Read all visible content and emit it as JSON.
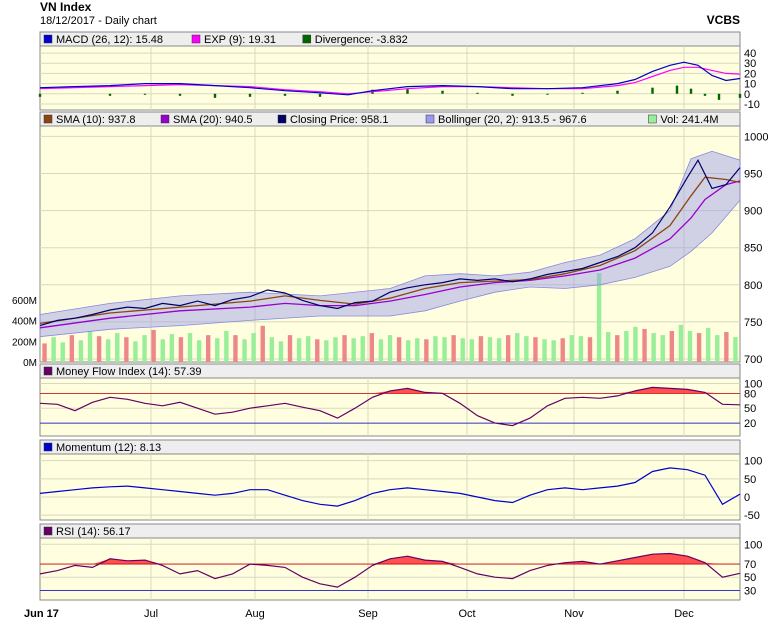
{
  "header": {
    "title": "VN Index",
    "subtitle": "18/12/2017 - Daily chart",
    "source": "VCBS"
  },
  "colors": {
    "panel_bg": "#ffffe0",
    "legend_bg": "#eeeeee",
    "macd": "#0000cc",
    "exp": "#ff00ff",
    "divergence": "#006600",
    "sma10": "#8b4513",
    "sma20": "#9900cc",
    "close": "#000066",
    "bollinger_fill": "#9999ee",
    "vol_up": "#99ee99",
    "vol_down": "#ee8888",
    "mfi": "#660066",
    "momentum": "#0000cc",
    "rsi": "#660066",
    "over_fill": "#ff3333",
    "ref_high": "#cc0000",
    "ref_low": "#0000cc"
  },
  "x_axis": {
    "labels": [
      "Jun 17",
      "Jul",
      "Aug",
      "Sep",
      "Oct",
      "Nov",
      "Dec"
    ]
  },
  "chart_data": [
    {
      "panel": "macd",
      "type": "line",
      "legend": [
        "MACD (26, 12): 15.48",
        "EXP (9): 19.31",
        "Divergence: -3.832"
      ],
      "y_ticks": [
        "40",
        "30",
        "20",
        "10",
        "0",
        "-10"
      ],
      "ylim": [
        -13,
        44
      ],
      "points": [
        [
          0,
          6
        ],
        [
          10,
          7
        ],
        [
          20,
          8
        ],
        [
          30,
          10
        ],
        [
          40,
          10
        ],
        [
          50,
          8
        ],
        [
          60,
          6
        ],
        [
          70,
          3
        ],
        [
          80,
          1
        ],
        [
          88,
          -1
        ],
        [
          95,
          3
        ],
        [
          105,
          7
        ],
        [
          115,
          8
        ],
        [
          125,
          7
        ],
        [
          135,
          5
        ],
        [
          145,
          5
        ],
        [
          155,
          6
        ],
        [
          165,
          10
        ],
        [
          170,
          14
        ],
        [
          175,
          22
        ],
        [
          180,
          28
        ],
        [
          184,
          31
        ],
        [
          188,
          28
        ],
        [
          192,
          18
        ],
        [
          196,
          13
        ],
        [
          200,
          15
        ]
      ],
      "exp_points": [
        [
          0,
          5
        ],
        [
          10,
          6
        ],
        [
          20,
          7
        ],
        [
          30,
          8
        ],
        [
          40,
          9
        ],
        [
          50,
          8
        ],
        [
          60,
          7
        ],
        [
          70,
          4
        ],
        [
          80,
          2
        ],
        [
          88,
          0
        ],
        [
          95,
          2
        ],
        [
          105,
          5
        ],
        [
          115,
          7
        ],
        [
          125,
          7
        ],
        [
          135,
          6
        ],
        [
          145,
          5
        ],
        [
          155,
          5
        ],
        [
          165,
          8
        ],
        [
          170,
          11
        ],
        [
          175,
          17
        ],
        [
          180,
          23
        ],
        [
          184,
          26
        ],
        [
          188,
          26
        ],
        [
          192,
          23
        ],
        [
          196,
          20
        ],
        [
          200,
          19.3
        ]
      ],
      "divergence": [
        [
          0,
          -3
        ],
        [
          20,
          -2
        ],
        [
          30,
          -1
        ],
        [
          40,
          -2
        ],
        [
          50,
          -4
        ],
        [
          60,
          -3
        ],
        [
          70,
          -2
        ],
        [
          80,
          -3
        ],
        [
          88,
          -1
        ],
        [
          95,
          4
        ],
        [
          105,
          5
        ],
        [
          115,
          3
        ],
        [
          125,
          1
        ],
        [
          135,
          -2
        ],
        [
          145,
          -1
        ],
        [
          155,
          1
        ],
        [
          165,
          3
        ],
        [
          175,
          6
        ],
        [
          182,
          8
        ],
        [
          186,
          5
        ],
        [
          190,
          -2
        ],
        [
          194,
          -6
        ],
        [
          200,
          -4
        ]
      ]
    },
    {
      "panel": "price",
      "type": "line",
      "legend": [
        "SMA (10): 937.8",
        "SMA (20): 940.5",
        "Closing Price: 958.1",
        "Bollinger (20, 2): 913.5 - 967.6",
        "Vol: 241.4M"
      ],
      "y_ticks": [
        "1000",
        "950",
        "900",
        "850",
        "800",
        "750",
        "700"
      ],
      "vol_ticks": [
        "600M",
        "400M",
        "200M",
        "0M"
      ],
      "ylim": [
        700,
        1010
      ],
      "close": [
        [
          0,
          745
        ],
        [
          5,
          752
        ],
        [
          10,
          755
        ],
        [
          15,
          760
        ],
        [
          20,
          766
        ],
        [
          25,
          770
        ],
        [
          30,
          768
        ],
        [
          35,
          775
        ],
        [
          40,
          772
        ],
        [
          45,
          778
        ],
        [
          50,
          772
        ],
        [
          55,
          780
        ],
        [
          60,
          784
        ],
        [
          65,
          793
        ],
        [
          70,
          789
        ],
        [
          75,
          779
        ],
        [
          80,
          772
        ],
        [
          85,
          768
        ],
        [
          90,
          776
        ],
        [
          95,
          778
        ],
        [
          100,
          790
        ],
        [
          105,
          796
        ],
        [
          110,
          800
        ],
        [
          115,
          803
        ],
        [
          120,
          808
        ],
        [
          125,
          806
        ],
        [
          130,
          808
        ],
        [
          135,
          804
        ],
        [
          140,
          808
        ],
        [
          145,
          814
        ],
        [
          150,
          818
        ],
        [
          155,
          822
        ],
        [
          160,
          830
        ],
        [
          165,
          838
        ],
        [
          170,
          850
        ],
        [
          175,
          870
        ],
        [
          180,
          905
        ],
        [
          185,
          945
        ],
        [
          188,
          968
        ],
        [
          192,
          930
        ],
        [
          196,
          935
        ],
        [
          200,
          958
        ]
      ],
      "sma10": [
        [
          0,
          748
        ],
        [
          20,
          762
        ],
        [
          40,
          770
        ],
        [
          60,
          778
        ],
        [
          70,
          785
        ],
        [
          80,
          779
        ],
        [
          90,
          774
        ],
        [
          100,
          782
        ],
        [
          110,
          795
        ],
        [
          120,
          803
        ],
        [
          130,
          805
        ],
        [
          140,
          807
        ],
        [
          150,
          815
        ],
        [
          160,
          826
        ],
        [
          170,
          846
        ],
        [
          180,
          880
        ],
        [
          186,
          920
        ],
        [
          190,
          945
        ],
        [
          196,
          942
        ],
        [
          200,
          938
        ]
      ],
      "sma20": [
        [
          0,
          742
        ],
        [
          20,
          755
        ],
        [
          40,
          765
        ],
        [
          60,
          770
        ],
        [
          70,
          775
        ],
        [
          80,
          772
        ],
        [
          90,
          772
        ],
        [
          100,
          778
        ],
        [
          110,
          787
        ],
        [
          120,
          797
        ],
        [
          130,
          803
        ],
        [
          140,
          806
        ],
        [
          150,
          812
        ],
        [
          160,
          820
        ],
        [
          170,
          836
        ],
        [
          180,
          862
        ],
        [
          186,
          890
        ],
        [
          190,
          915
        ],
        [
          196,
          935
        ],
        [
          200,
          940
        ]
      ],
      "bb_upper": [
        [
          0,
          760
        ],
        [
          20,
          775
        ],
        [
          40,
          785
        ],
        [
          60,
          790
        ],
        [
          80,
          785
        ],
        [
          100,
          795
        ],
        [
          110,
          812
        ],
        [
          120,
          815
        ],
        [
          130,
          812
        ],
        [
          140,
          817
        ],
        [
          150,
          830
        ],
        [
          160,
          840
        ],
        [
          170,
          862
        ],
        [
          180,
          900
        ],
        [
          186,
          970
        ],
        [
          192,
          980
        ],
        [
          200,
          968
        ]
      ],
      "bb_lower": [
        [
          0,
          730
        ],
        [
          20,
          740
        ],
        [
          40,
          745
        ],
        [
          60,
          752
        ],
        [
          80,
          758
        ],
        [
          100,
          758
        ],
        [
          110,
          765
        ],
        [
          120,
          778
        ],
        [
          130,
          790
        ],
        [
          140,
          797
        ],
        [
          150,
          795
        ],
        [
          160,
          800
        ],
        [
          170,
          810
        ],
        [
          180,
          825
        ],
        [
          186,
          845
        ],
        [
          192,
          870
        ],
        [
          200,
          914
        ]
      ],
      "volume_m": [
        180,
        240,
        190,
        260,
        210,
        300,
        250,
        220,
        280,
        240,
        200,
        260,
        310,
        220,
        270,
        240,
        280,
        210,
        260,
        230,
        300,
        260,
        220,
        280,
        350,
        240,
        200,
        260,
        230,
        250,
        220,
        210,
        240,
        260,
        230,
        250,
        280,
        220,
        260,
        240,
        210,
        230,
        220,
        250,
        240,
        260,
        230,
        220,
        250,
        240,
        230,
        260,
        280,
        250,
        240,
        220,
        210,
        230,
        260,
        250,
        240,
        860,
        290,
        260,
        300,
        340,
        320,
        280,
        260,
        300,
        360,
        300,
        280,
        330,
        260,
        290,
        241
      ]
    },
    {
      "panel": "mfi",
      "type": "line",
      "legend": [
        "Money Flow Index (14): 57.39"
      ],
      "y_ticks": [
        "100",
        "80",
        "50",
        "20"
      ],
      "ylim": [
        0,
        105
      ],
      "ref": [
        80,
        20
      ],
      "points": [
        [
          0,
          60
        ],
        [
          5,
          58
        ],
        [
          10,
          45
        ],
        [
          15,
          62
        ],
        [
          20,
          72
        ],
        [
          25,
          68
        ],
        [
          30,
          60
        ],
        [
          35,
          55
        ],
        [
          40,
          62
        ],
        [
          45,
          50
        ],
        [
          50,
          38
        ],
        [
          55,
          42
        ],
        [
          60,
          50
        ],
        [
          65,
          55
        ],
        [
          70,
          60
        ],
        [
          75,
          52
        ],
        [
          80,
          45
        ],
        [
          85,
          30
        ],
        [
          90,
          50
        ],
        [
          95,
          72
        ],
        [
          100,
          85
        ],
        [
          105,
          90
        ],
        [
          110,
          82
        ],
        [
          115,
          80
        ],
        [
          120,
          60
        ],
        [
          125,
          35
        ],
        [
          130,
          20
        ],
        [
          135,
          15
        ],
        [
          140,
          30
        ],
        [
          145,
          55
        ],
        [
          150,
          70
        ],
        [
          155,
          72
        ],
        [
          160,
          70
        ],
        [
          165,
          75
        ],
        [
          170,
          85
        ],
        [
          175,
          92
        ],
        [
          180,
          90
        ],
        [
          185,
          88
        ],
        [
          190,
          82
        ],
        [
          195,
          58
        ],
        [
          200,
          57
        ]
      ]
    },
    {
      "panel": "momentum",
      "type": "line",
      "legend": [
        "Momentum (12): 8.13"
      ],
      "y_ticks": [
        "100",
        "50",
        "0",
        "-50"
      ],
      "ylim": [
        -55,
        110
      ],
      "points": [
        [
          0,
          10
        ],
        [
          5,
          15
        ],
        [
          10,
          20
        ],
        [
          15,
          25
        ],
        [
          20,
          28
        ],
        [
          25,
          30
        ],
        [
          30,
          25
        ],
        [
          35,
          20
        ],
        [
          40,
          15
        ],
        [
          45,
          10
        ],
        [
          50,
          5
        ],
        [
          55,
          10
        ],
        [
          60,
          20
        ],
        [
          65,
          20
        ],
        [
          70,
          5
        ],
        [
          75,
          -10
        ],
        [
          80,
          -20
        ],
        [
          85,
          -25
        ],
        [
          90,
          -10
        ],
        [
          95,
          10
        ],
        [
          100,
          20
        ],
        [
          105,
          25
        ],
        [
          110,
          20
        ],
        [
          115,
          15
        ],
        [
          120,
          10
        ],
        [
          125,
          0
        ],
        [
          130,
          -10
        ],
        [
          135,
          -15
        ],
        [
          140,
          5
        ],
        [
          145,
          20
        ],
        [
          150,
          25
        ],
        [
          155,
          20
        ],
        [
          160,
          25
        ],
        [
          165,
          30
        ],
        [
          170,
          40
        ],
        [
          175,
          70
        ],
        [
          180,
          80
        ],
        [
          185,
          75
        ],
        [
          190,
          60
        ],
        [
          195,
          -20
        ],
        [
          200,
          8
        ]
      ]
    },
    {
      "panel": "rsi",
      "type": "line",
      "legend": [
        "RSI (14): 56.17"
      ],
      "y_ticks": [
        "100",
        "70",
        "50",
        "30"
      ],
      "ylim": [
        20,
        105
      ],
      "ref": [
        70,
        30
      ],
      "points": [
        [
          0,
          55
        ],
        [
          5,
          60
        ],
        [
          10,
          68
        ],
        [
          15,
          65
        ],
        [
          20,
          78
        ],
        [
          25,
          75
        ],
        [
          30,
          76
        ],
        [
          35,
          68
        ],
        [
          40,
          55
        ],
        [
          45,
          60
        ],
        [
          50,
          48
        ],
        [
          55,
          55
        ],
        [
          60,
          70
        ],
        [
          65,
          68
        ],
        [
          70,
          65
        ],
        [
          75,
          50
        ],
        [
          80,
          40
        ],
        [
          85,
          35
        ],
        [
          90,
          50
        ],
        [
          95,
          68
        ],
        [
          100,
          78
        ],
        [
          105,
          82
        ],
        [
          110,
          76
        ],
        [
          115,
          74
        ],
        [
          120,
          65
        ],
        [
          125,
          55
        ],
        [
          130,
          50
        ],
        [
          135,
          48
        ],
        [
          140,
          60
        ],
        [
          145,
          68
        ],
        [
          150,
          72
        ],
        [
          155,
          74
        ],
        [
          160,
          70
        ],
        [
          165,
          75
        ],
        [
          170,
          80
        ],
        [
          175,
          85
        ],
        [
          180,
          86
        ],
        [
          185,
          82
        ],
        [
          190,
          72
        ],
        [
          195,
          50
        ],
        [
          200,
          56
        ]
      ]
    }
  ]
}
